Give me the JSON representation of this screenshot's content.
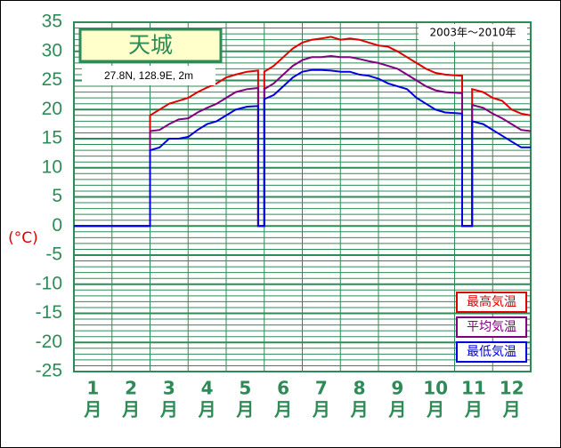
{
  "chart_data": {
    "type": "line",
    "title": "天城",
    "subtitle": "27.8N,  128.9E,  2m",
    "period": "2003年～2010年",
    "ylabel": "(°C)",
    "xtick_unit": "月",
    "xlim": [
      1,
      13
    ],
    "xticks": [
      {
        "value": 1.5,
        "label": "1"
      },
      {
        "value": 2.5,
        "label": "2"
      },
      {
        "value": 3.5,
        "label": "3"
      },
      {
        "value": 4.5,
        "label": "4"
      },
      {
        "value": 5.5,
        "label": "5"
      },
      {
        "value": 6.5,
        "label": "6"
      },
      {
        "value": 7.5,
        "label": "7"
      },
      {
        "value": 8.5,
        "label": "8"
      },
      {
        "value": 9.5,
        "label": "9"
      },
      {
        "value": 10.5,
        "label": "10"
      },
      {
        "value": 11.5,
        "label": "11"
      },
      {
        "value": 12.5,
        "label": "12"
      }
    ],
    "xgrid": [
      2,
      3,
      4,
      5,
      6,
      7,
      8,
      9,
      10,
      11,
      12
    ],
    "ylim": [
      -25,
      35
    ],
    "yticks": [
      -25,
      -20,
      -15,
      -10,
      -5,
      0,
      5,
      10,
      15,
      20,
      25,
      30,
      35
    ],
    "grid": true,
    "legend": "lower right",
    "x": [
      1,
      3,
      3,
      3.25,
      3.5,
      3.75,
      4,
      4.25,
      4.5,
      4.75,
      5,
      5.25,
      5.55,
      5.84,
      5.84,
      6,
      6,
      6.25,
      6.5,
      6.75,
      7,
      7.25,
      7.5,
      7.75,
      8,
      8.25,
      8.5,
      8.75,
      9,
      9.25,
      9.5,
      9.75,
      10,
      10.25,
      10.5,
      10.75,
      11.2,
      11.2,
      11.46,
      11.46,
      11.75,
      12,
      12.25,
      12.5,
      12.75,
      13
    ],
    "series": [
      {
        "name": "最高気温",
        "color": "#e00000",
        "values": [
          0,
          0,
          19,
          20,
          21,
          21.5,
          22,
          23,
          23.8,
          24.5,
          25.5,
          26,
          26.5,
          26.7,
          0,
          0,
          26.5,
          27.5,
          29,
          30.5,
          31.5,
          32,
          32.2,
          32.5,
          32,
          32.2,
          32,
          31.5,
          31,
          30.8,
          30,
          29,
          28,
          27,
          26.3,
          26,
          25.8,
          0,
          0,
          23.5,
          23,
          22,
          21.5,
          20,
          19.3,
          19
        ]
      },
      {
        "name": "平均気温",
        "color": "#800080",
        "values": [
          0,
          0,
          16.3,
          16.5,
          17.5,
          18.3,
          18.5,
          19.5,
          20.3,
          21,
          22,
          23,
          23.5,
          23.7,
          0,
          0,
          23.5,
          24.5,
          26,
          27.5,
          28.5,
          29,
          29,
          29.2,
          29,
          29,
          28.7,
          28.3,
          28,
          27.5,
          27,
          26,
          25,
          24,
          23.3,
          23,
          22.8,
          0,
          0,
          20.8,
          20.3,
          19.3,
          18.5,
          17.5,
          16.5,
          16.3
        ]
      },
      {
        "name": "最低気温",
        "color": "#0000e0",
        "values": [
          0,
          0,
          13,
          13.5,
          15,
          15,
          15.3,
          16.5,
          17.5,
          18,
          19,
          20,
          20.5,
          20.6,
          0,
          0,
          21.8,
          22.5,
          24,
          25.5,
          26.5,
          26.8,
          26.8,
          26.7,
          26.5,
          26.5,
          26,
          25.8,
          25.3,
          24.5,
          24,
          23.5,
          22,
          21,
          20,
          19.5,
          19.3,
          0,
          0,
          18,
          17.5,
          16.5,
          15.5,
          14.5,
          13.5,
          13.5
        ]
      }
    ]
  }
}
